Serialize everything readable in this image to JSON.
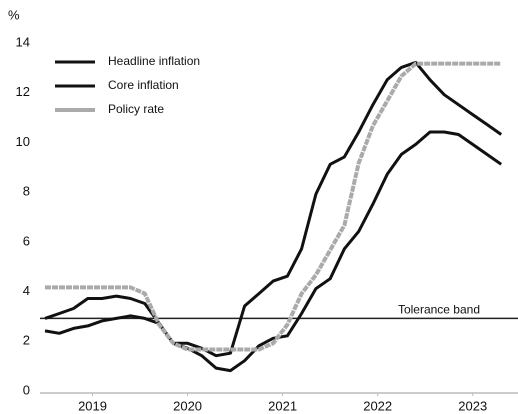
{
  "chart_data": {
    "type": "line",
    "y_label": "%",
    "x": [
      2019.0,
      2019.15,
      2019.3,
      2019.45,
      2019.6,
      2019.75,
      2019.9,
      2020.05,
      2020.2,
      2020.35,
      2020.5,
      2020.65,
      2020.8,
      2020.95,
      2021.1,
      2021.25,
      2021.4,
      2021.55,
      2021.7,
      2021.85,
      2022.0,
      2022.15,
      2022.3,
      2022.45,
      2022.6,
      2022.75,
      2022.9,
      2023.05,
      2023.2,
      2023.35,
      2023.5,
      2023.65,
      2023.8
    ],
    "series": [
      {
        "name": "Headline inflation",
        "color": "#111111",
        "values": [
          3.0,
          3.2,
          3.4,
          3.8,
          3.8,
          3.9,
          3.8,
          3.6,
          2.8,
          2.0,
          2.0,
          1.8,
          1.5,
          1.6,
          3.5,
          4.0,
          4.5,
          4.7,
          5.8,
          8.0,
          9.2,
          9.5,
          10.5,
          11.6,
          12.6,
          13.1,
          13.3,
          12.6,
          12.0,
          11.6,
          11.2,
          10.8,
          10.4
        ]
      },
      {
        "name": "Core inflation",
        "color": "#111111",
        "values": [
          2.5,
          2.4,
          2.6,
          2.7,
          2.9,
          3.0,
          3.1,
          3.0,
          2.8,
          2.0,
          1.8,
          1.5,
          1.0,
          0.9,
          1.3,
          1.9,
          2.2,
          2.3,
          3.2,
          4.2,
          4.6,
          5.8,
          6.5,
          7.6,
          8.8,
          9.6,
          10.0,
          10.5,
          10.5,
          10.4,
          10.0,
          9.6,
          9.2
        ]
      },
      {
        "name": "Policy rate",
        "color": "#aaaaaa",
        "values": [
          4.25,
          4.25,
          4.25,
          4.25,
          4.25,
          4.25,
          4.25,
          4.0,
          2.75,
          2.0,
          1.75,
          1.75,
          1.75,
          1.75,
          1.75,
          1.75,
          2.0,
          2.75,
          4.0,
          4.75,
          5.75,
          6.75,
          9.25,
          10.75,
          11.75,
          12.75,
          13.25,
          13.25,
          13.25,
          13.25,
          13.25,
          13.25,
          13.25
        ]
      }
    ],
    "xlim": [
      2019,
      2023.85
    ],
    "xticks": [
      {
        "value": 2019.5,
        "label": "2019"
      },
      {
        "value": 2020.5,
        "label": "2020"
      },
      {
        "value": 2021.5,
        "label": "2021"
      },
      {
        "value": 2022.5,
        "label": "2022"
      },
      {
        "value": 2023.5,
        "label": "2023"
      }
    ],
    "ylim": [
      0,
      14
    ],
    "yticks": [
      0,
      2,
      4,
      6,
      8,
      10,
      12,
      14
    ],
    "grid": false,
    "legend": "upper left",
    "reference_line": {
      "label": "Tolerance band",
      "value": 3
    }
  }
}
